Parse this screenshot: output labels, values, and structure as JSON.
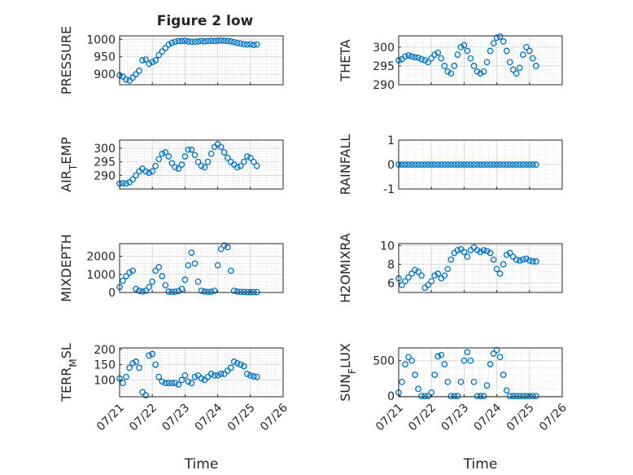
{
  "title": "Figure 2 low",
  "colors": {
    "marker": "#0072BD",
    "axis": "#262626",
    "grid": "#d9d9d9",
    "minor_grid": "#c8c8c8"
  },
  "chart_data": [
    {
      "type": "scatter",
      "ylabel": "PRESSURE",
      "xlabel": "",
      "xlim": [
        "07/21",
        "07/26"
      ],
      "ylim": [
        870,
        1010
      ],
      "yticks": [
        900,
        950,
        1000
      ],
      "ytick_labels": [
        "900",
        "950",
        "1000"
      ],
      "xticks": [
        "07/21",
        "07/22",
        "07/23",
        "07/24",
        "07/25",
        "07/26"
      ],
      "show_xtick_labels": false,
      "grid": true,
      "minor_grid": true,
      "x_days": [
        0,
        0.1,
        0.2,
        0.3,
        0.4,
        0.5,
        0.6,
        0.7,
        0.8,
        0.9,
        1,
        1.1,
        1.2,
        1.3,
        1.4,
        1.5,
        1.6,
        1.7,
        1.8,
        1.9,
        2,
        2.1,
        2.2,
        2.3,
        2.4,
        2.5,
        2.6,
        2.7,
        2.8,
        2.9,
        3,
        3.1,
        3.2,
        3.3,
        3.4,
        3.5,
        3.6,
        3.7,
        3.8,
        3.9,
        4,
        4.1,
        4.2
      ],
      "values": [
        897,
        893,
        885,
        882,
        890,
        900,
        910,
        940,
        942,
        930,
        935,
        940,
        955,
        965,
        975,
        985,
        990,
        993,
        995,
        995,
        996,
        994,
        993,
        993,
        994,
        995,
        994,
        995,
        996,
        995,
        996,
        997,
        996,
        995,
        994,
        992,
        990,
        988,
        986,
        985,
        986,
        984,
        985
      ]
    },
    {
      "type": "scatter",
      "ylabel": "THETA",
      "xlabel": "",
      "xlim": [
        "07/21",
        "07/26"
      ],
      "ylim": [
        290,
        303
      ],
      "yticks": [
        290,
        295,
        300
      ],
      "ytick_labels": [
        "290",
        "295",
        "300"
      ],
      "xticks": [
        "07/21",
        "07/22",
        "07/23",
        "07/24",
        "07/25",
        "07/26"
      ],
      "show_xtick_labels": false,
      "grid": true,
      "minor_grid": true,
      "x_days": [
        0,
        0.1,
        0.2,
        0.3,
        0.4,
        0.5,
        0.6,
        0.7,
        0.8,
        0.9,
        1,
        1.1,
        1.2,
        1.3,
        1.4,
        1.5,
        1.6,
        1.7,
        1.8,
        1.9,
        2,
        2.1,
        2.2,
        2.3,
        2.4,
        2.5,
        2.6,
        2.7,
        2.8,
        2.9,
        3,
        3.1,
        3.2,
        3.3,
        3.4,
        3.5,
        3.6,
        3.7,
        3.8,
        3.9,
        4,
        4.1,
        4.2
      ],
      "values": [
        296.5,
        296.8,
        297.5,
        297.8,
        297.5,
        297.3,
        297.2,
        296.8,
        296.5,
        296.0,
        297.0,
        298.0,
        298.5,
        297.0,
        295.0,
        293.5,
        293.0,
        295.0,
        298.0,
        300.0,
        300.5,
        299.0,
        297.0,
        295.0,
        293.5,
        293.0,
        293.5,
        296.0,
        299.0,
        301.0,
        302.5,
        302.8,
        301.5,
        299.0,
        296.0,
        294.0,
        293.0,
        294.5,
        298.0,
        300.0,
        299.0,
        297.0,
        295.0
      ]
    },
    {
      "type": "scatter",
      "ylabel": "AIR_TEMP",
      "xlabel": "",
      "xlim": [
        "07/21",
        "07/26"
      ],
      "ylim": [
        285,
        303
      ],
      "yticks": [
        290,
        295,
        300
      ],
      "ytick_labels": [
        "290",
        "295",
        "300"
      ],
      "xticks": [
        "07/21",
        "07/22",
        "07/23",
        "07/24",
        "07/25",
        "07/26"
      ],
      "show_xtick_labels": false,
      "grid": true,
      "minor_grid": true,
      "x_days": [
        0,
        0.1,
        0.2,
        0.3,
        0.4,
        0.5,
        0.6,
        0.7,
        0.8,
        0.9,
        1,
        1.1,
        1.2,
        1.3,
        1.4,
        1.5,
        1.6,
        1.7,
        1.8,
        1.9,
        2,
        2.1,
        2.2,
        2.3,
        2.4,
        2.5,
        2.6,
        2.7,
        2.8,
        2.9,
        3,
        3.1,
        3.2,
        3.3,
        3.4,
        3.5,
        3.6,
        3.7,
        3.8,
        3.9,
        4,
        4.1,
        4.2
      ],
      "values": [
        287.0,
        287.2,
        287.0,
        287.5,
        288.5,
        290.0,
        291.5,
        292.5,
        291.5,
        291.0,
        291.5,
        293.5,
        296.0,
        298.0,
        298.5,
        297.0,
        294.5,
        293.0,
        292.5,
        294.0,
        297.0,
        299.5,
        299.5,
        297.5,
        295.0,
        293.5,
        293.0,
        295.0,
        298.0,
        300.5,
        301.5,
        300.5,
        298.5,
        296.5,
        295.0,
        294.0,
        293.0,
        293.5,
        295.0,
        297.0,
        296.5,
        295.0,
        293.5
      ]
    },
    {
      "type": "scatter",
      "ylabel": "RAINFALL",
      "xlabel": "",
      "xlim": [
        "07/21",
        "07/26"
      ],
      "ylim": [
        -1,
        1
      ],
      "yticks": [
        -1,
        0,
        1
      ],
      "ytick_labels": [
        "-1",
        "0",
        "1"
      ],
      "xticks": [
        "07/21",
        "07/22",
        "07/23",
        "07/24",
        "07/25",
        "07/26"
      ],
      "show_xtick_labels": false,
      "grid": true,
      "minor_grid": true,
      "x_days": [
        0,
        0.1,
        0.2,
        0.3,
        0.4,
        0.5,
        0.6,
        0.7,
        0.8,
        0.9,
        1,
        1.1,
        1.2,
        1.3,
        1.4,
        1.5,
        1.6,
        1.7,
        1.8,
        1.9,
        2,
        2.1,
        2.2,
        2.3,
        2.4,
        2.5,
        2.6,
        2.7,
        2.8,
        2.9,
        3,
        3.1,
        3.2,
        3.3,
        3.4,
        3.5,
        3.6,
        3.7,
        3.8,
        3.9,
        4,
        4.1,
        4.2
      ],
      "values": [
        0,
        0,
        0,
        0,
        0,
        0,
        0,
        0,
        0,
        0,
        0,
        0,
        0,
        0,
        0,
        0,
        0,
        0,
        0,
        0,
        0,
        0,
        0,
        0,
        0,
        0,
        0,
        0,
        0,
        0,
        0,
        0,
        0,
        0,
        0,
        0,
        0,
        0,
        0,
        0,
        0,
        0,
        0
      ]
    },
    {
      "type": "scatter",
      "ylabel": "MIXDEPTH",
      "xlabel": "",
      "xlim": [
        "07/21",
        "07/26"
      ],
      "ylim": [
        0,
        2700
      ],
      "yticks": [
        0,
        1000,
        2000
      ],
      "ytick_labels": [
        "0",
        "1000",
        "2000"
      ],
      "xticks": [
        "07/21",
        "07/22",
        "07/23",
        "07/24",
        "07/25",
        "07/26"
      ],
      "show_xtick_labels": false,
      "grid": true,
      "minor_grid": true,
      "x_days": [
        0,
        0.1,
        0.2,
        0.3,
        0.4,
        0.5,
        0.6,
        0.7,
        0.8,
        0.9,
        1,
        1.1,
        1.2,
        1.3,
        1.4,
        1.5,
        1.6,
        1.7,
        1.8,
        1.9,
        2,
        2.1,
        2.2,
        2.3,
        2.4,
        2.5,
        2.6,
        2.7,
        2.8,
        2.9,
        3,
        3.1,
        3.2,
        3.3,
        3.4,
        3.5,
        3.6,
        3.7,
        3.8,
        3.9,
        4,
        4.1,
        4.2
      ],
      "values": [
        300,
        650,
        900,
        1100,
        1200,
        200,
        100,
        50,
        100,
        300,
        600,
        1200,
        1400,
        900,
        400,
        50,
        30,
        40,
        80,
        200,
        700,
        1500,
        2200,
        1600,
        600,
        100,
        50,
        30,
        40,
        100,
        1500,
        2400,
        2600,
        2500,
        1200,
        100,
        50,
        30,
        30,
        20,
        20,
        20,
        20
      ]
    },
    {
      "type": "scatter",
      "ylabel": "H2OMIXRA",
      "xlabel": "",
      "xlim": [
        "07/21",
        "07/26"
      ],
      "ylim": [
        5,
        10.2
      ],
      "yticks": [
        6,
        8,
        10
      ],
      "ytick_labels": [
        "6",
        "8",
        "10"
      ],
      "xticks": [
        "07/21",
        "07/22",
        "07/23",
        "07/24",
        "07/25",
        "07/26"
      ],
      "show_xtick_labels": false,
      "grid": true,
      "minor_grid": true,
      "x_days": [
        0,
        0.1,
        0.2,
        0.3,
        0.4,
        0.5,
        0.6,
        0.7,
        0.8,
        0.9,
        1,
        1.1,
        1.2,
        1.3,
        1.4,
        1.5,
        1.6,
        1.7,
        1.8,
        1.9,
        2,
        2.1,
        2.2,
        2.3,
        2.4,
        2.5,
        2.6,
        2.7,
        2.8,
        2.9,
        3,
        3.1,
        3.2,
        3.3,
        3.4,
        3.5,
        3.6,
        3.7,
        3.8,
        3.9,
        4,
        4.1,
        4.2
      ],
      "values": [
        6.5,
        5.8,
        6.2,
        6.6,
        7.0,
        7.4,
        7.2,
        6.8,
        5.5,
        5.8,
        6.2,
        6.8,
        7.0,
        6.5,
        6.8,
        7.5,
        8.5,
        9.2,
        9.5,
        9.6,
        9.3,
        8.8,
        9.5,
        9.8,
        9.5,
        9.3,
        9.5,
        9.4,
        9.2,
        8.5,
        7.5,
        7.0,
        8.0,
        9.0,
        9.2,
        8.8,
        8.5,
        8.4,
        8.5,
        8.6,
        8.4,
        8.3,
        8.3
      ]
    },
    {
      "type": "scatter",
      "ylabel": "TERR_MSL",
      "xlabel": "Time",
      "xlim": [
        "07/21",
        "07/26"
      ],
      "ylim": [
        45,
        205
      ],
      "yticks": [
        100,
        150,
        200
      ],
      "ytick_labels": [
        "100",
        "150",
        "200"
      ],
      "xticks": [
        "07/21",
        "07/22",
        "07/23",
        "07/24",
        "07/25",
        "07/26"
      ],
      "show_xtick_labels": true,
      "grid": true,
      "minor_grid": true,
      "x_days": [
        0,
        0.1,
        0.2,
        0.3,
        0.4,
        0.5,
        0.6,
        0.7,
        0.8,
        0.9,
        1,
        1.1,
        1.2,
        1.3,
        1.4,
        1.5,
        1.6,
        1.7,
        1.8,
        1.9,
        2,
        2.1,
        2.2,
        2.3,
        2.4,
        2.5,
        2.6,
        2.7,
        2.8,
        2.9,
        3,
        3.1,
        3.2,
        3.3,
        3.4,
        3.5,
        3.6,
        3.7,
        3.8,
        3.9,
        4,
        4.1,
        4.2
      ],
      "values": [
        105,
        90,
        110,
        140,
        155,
        160,
        140,
        60,
        50,
        180,
        185,
        150,
        110,
        95,
        90,
        90,
        90,
        90,
        85,
        100,
        115,
        95,
        90,
        110,
        115,
        105,
        100,
        110,
        120,
        115,
        115,
        120,
        120,
        130,
        140,
        160,
        155,
        150,
        145,
        120,
        115,
        112,
        110
      ]
    },
    {
      "type": "scatter",
      "ylabel": "SUN_FLUX",
      "xlabel": "Time",
      "xlim": [
        "07/21",
        "07/26"
      ],
      "ylim": [
        -10,
        680
      ],
      "yticks": [
        0,
        500
      ],
      "ytick_labels": [
        "0",
        "500"
      ],
      "xticks": [
        "07/21",
        "07/22",
        "07/23",
        "07/24",
        "07/25",
        "07/26"
      ],
      "show_xtick_labels": true,
      "grid": true,
      "minor_grid": true,
      "x_days": [
        0,
        0.1,
        0.2,
        0.3,
        0.4,
        0.5,
        0.6,
        0.7,
        0.8,
        0.9,
        1,
        1.1,
        1.2,
        1.3,
        1.4,
        1.5,
        1.6,
        1.7,
        1.8,
        1.9,
        2,
        2.1,
        2.2,
        2.3,
        2.4,
        2.5,
        2.6,
        2.7,
        2.8,
        2.9,
        3,
        3.1,
        3.2,
        3.3,
        3.4,
        3.5,
        3.6,
        3.7,
        3.8,
        3.9,
        4,
        4.1,
        4.2
      ],
      "values": [
        50,
        200,
        450,
        550,
        500,
        300,
        100,
        0,
        0,
        0,
        50,
        300,
        560,
        580,
        450,
        200,
        0,
        0,
        0,
        200,
        500,
        620,
        500,
        200,
        0,
        0,
        0,
        150,
        450,
        600,
        650,
        550,
        300,
        80,
        0,
        0,
        0,
        0,
        0,
        0,
        0,
        0,
        0
      ]
    }
  ]
}
